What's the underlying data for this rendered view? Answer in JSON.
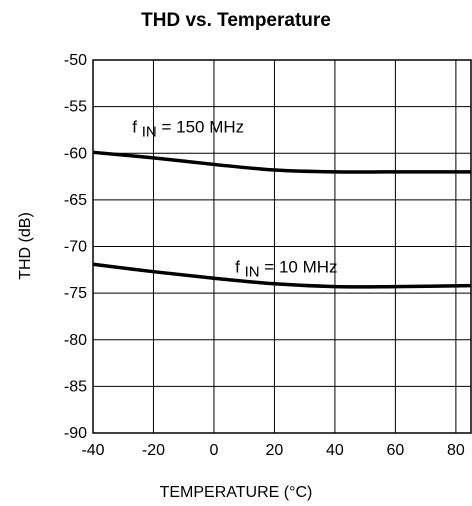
{
  "chart_data": {
    "type": "line",
    "title": "THD vs. Temperature",
    "xlabel": "TEMPERATURE (°C)",
    "ylabel": "THD (dB)",
    "xlim": [
      -40,
      85
    ],
    "ylim": [
      -90,
      -50
    ],
    "x_ticks": [
      -40,
      -20,
      0,
      20,
      40,
      60,
      80
    ],
    "y_ticks": [
      -50,
      -55,
      -60,
      -65,
      -70,
      -75,
      -80,
      -85,
      -90
    ],
    "grid": true,
    "series": [
      {
        "name": "f IN = 150 MHz",
        "label_main": "f",
        "label_sub": "IN",
        "label_rest": " = 150 MHz",
        "x": [
          -40,
          -20,
          0,
          20,
          40,
          60,
          85
        ],
        "y": [
          -59.9,
          -60.5,
          -61.2,
          -61.8,
          -62.0,
          -62.0,
          -62.0
        ]
      },
      {
        "name": "f IN = 10 MHz",
        "label_main": "f",
        "label_sub": "IN",
        "label_rest": " = 10 MHz",
        "x": [
          -40,
          -20,
          0,
          20,
          40,
          60,
          85
        ],
        "y": [
          -71.9,
          -72.7,
          -73.4,
          -74.0,
          -74.3,
          -74.3,
          -74.2
        ]
      }
    ],
    "line_color": "#000000"
  }
}
